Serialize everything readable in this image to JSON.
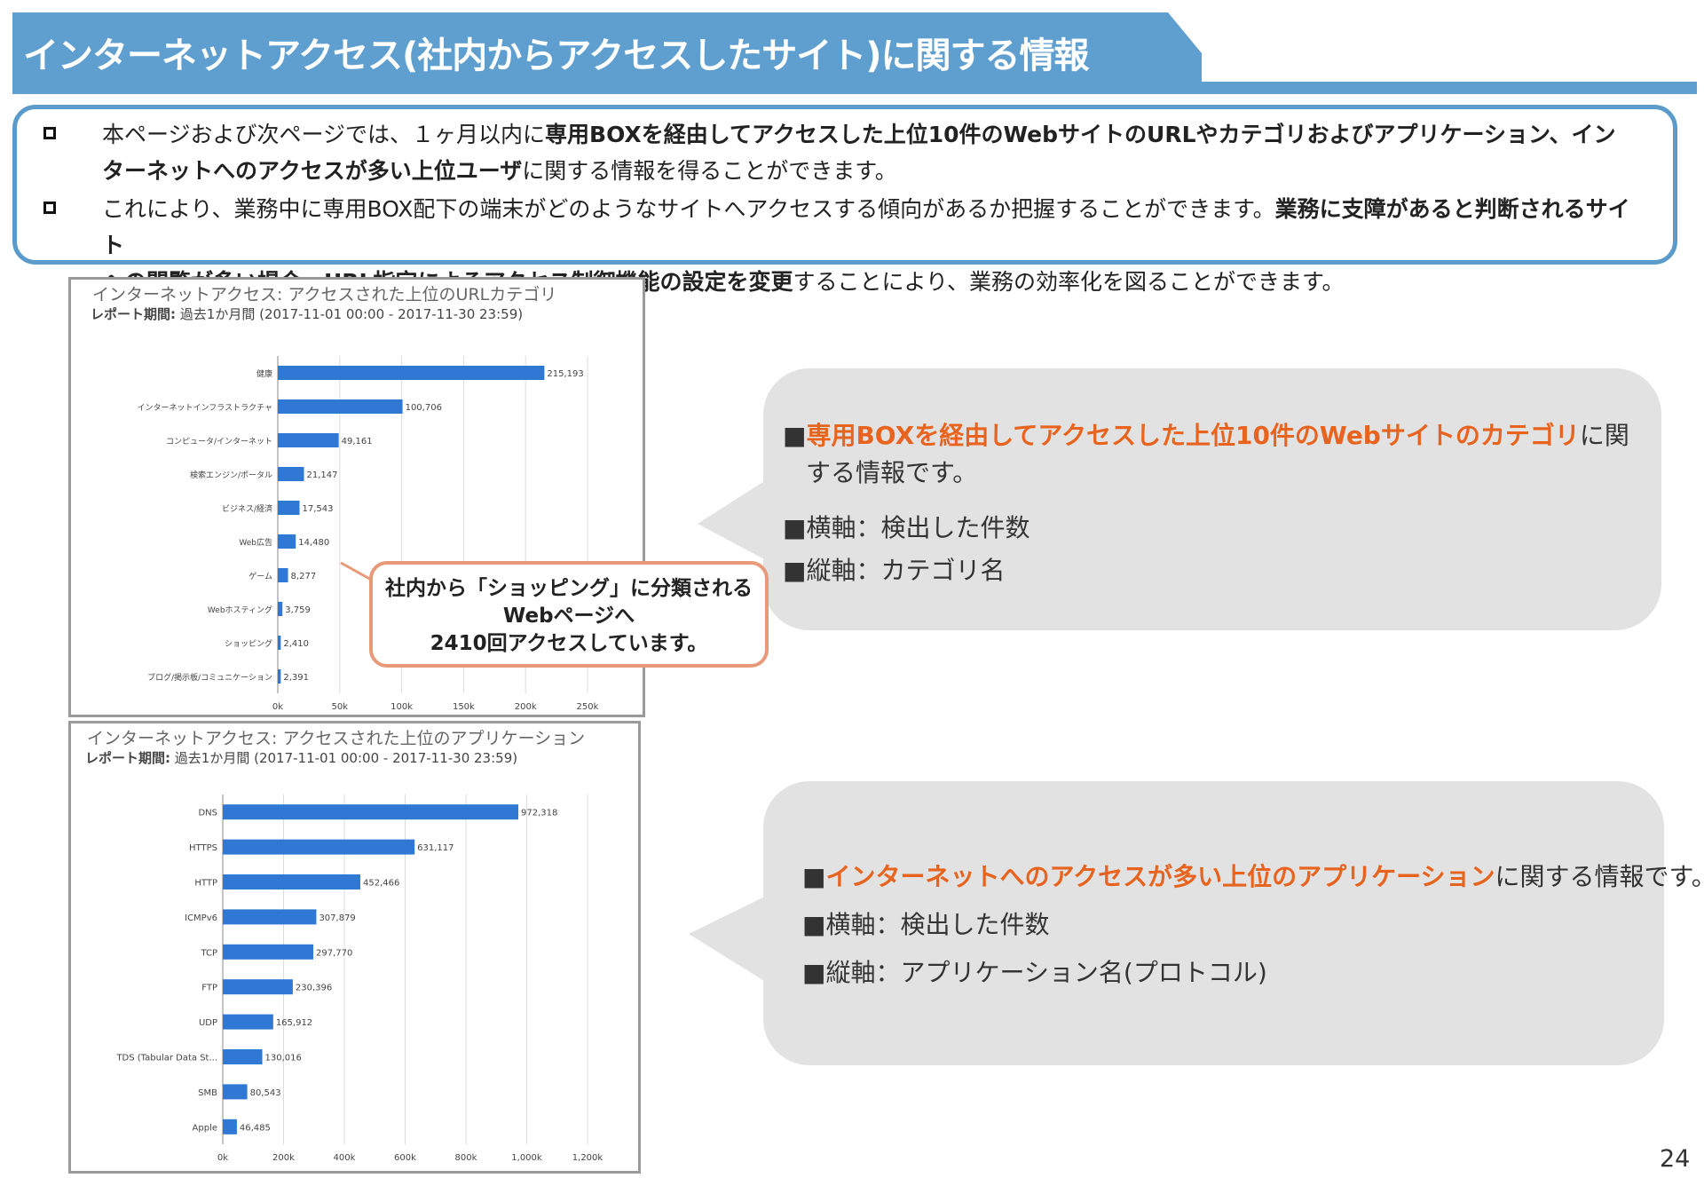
{
  "title": "インターネットアクセス(社内からアクセスしたサイト)に関する情報",
  "intro": {
    "b1_l1_a": "本ページおよび次ページでは、１ヶ月以内に",
    "b1_l1_b": "専用BOXを経由してアクセスした上位10件のWebサイトのURLやカテゴリおよびアプリケーション、イン",
    "b1_l2_a": "ターネットへのアクセスが多い上位ユーザ",
    "b1_l2_b": "に関する情報を得ることができます。",
    "b2_l1_a": "これにより、業務中に専用BOX配下の端末がどのようなサイトへアクセスする傾向があるか把握することができます。",
    "b2_l1_b": "業務に支障があると判断されるサイト",
    "b2_l2_a": "への閲覧が多い場合、URL指定によるアクセス制御機能の設定を変更",
    "b2_l2_b": "することにより、業務の効率化を図ることができます。"
  },
  "chart_data": [
    {
      "type": "bar",
      "orientation": "horizontal",
      "title": "インターネットアクセス: アクセスされた上位のURLカテゴリ",
      "period_label": "レポート期間:",
      "period_value": "過去1か月間 (2017-11-01 00:00 - 2017-11-30 23:59)",
      "categories": [
        "健康",
        "インターネットインフラストラクチャ",
        "コンピュータ/インターネット",
        "検索エンジン/ポータル",
        "ビジネス/経済",
        "Web広告",
        "ゲーム",
        "Webホスティング",
        "ショッピング",
        "ブログ/掲示板/コミュニケーション"
      ],
      "values": [
        215193,
        100706,
        49161,
        21147,
        17543,
        14480,
        8277,
        3759,
        2410,
        2391
      ],
      "value_labels": [
        "215,193",
        "100,706",
        "49,161",
        "21,147",
        "17,543",
        "14,480",
        "8,277",
        "3,759",
        "2,410",
        "2,391"
      ],
      "xlim": [
        0,
        250000
      ],
      "ticks": [
        0,
        50000,
        100000,
        150000,
        200000,
        250000
      ],
      "tick_labels": [
        "0k",
        "50k",
        "100k",
        "150k",
        "200k",
        "250k"
      ],
      "grid": true,
      "bar_color": "#2f78d4"
    },
    {
      "type": "bar",
      "orientation": "horizontal",
      "title": "インターネットアクセス: アクセスされた上位のアプリケーション",
      "period_label": "レポート期間:",
      "period_value": "過去1か月間 (2017-11-01 00:00 - 2017-11-30 23:59)",
      "categories": [
        "DNS",
        "HTTPS",
        "HTTP",
        "ICMPv6",
        "TCP",
        "FTP",
        "UDP",
        "TDS (Tabular Data St...",
        "SMB",
        "Apple"
      ],
      "values": [
        972318,
        631117,
        452466,
        307879,
        297770,
        230396,
        165912,
        130016,
        80543,
        46485
      ],
      "value_labels": [
        "972,318",
        "631,117",
        "452,466",
        "307,879",
        "297,770",
        "230,396",
        "165,912",
        "130,016",
        "80,543",
        "46,485"
      ],
      "xlim": [
        0,
        1200000
      ],
      "ticks": [
        0,
        200000,
        400000,
        600000,
        800000,
        1000000,
        1200000
      ],
      "tick_labels": [
        "0k",
        "200k",
        "400k",
        "600k",
        "800k",
        "1,000k",
        "1,200k"
      ],
      "grid": true,
      "bar_color": "#2f78d4"
    }
  ],
  "callout": {
    "l1": "社内から「ショッピング」に分類される",
    "l2": "Webページへ",
    "l3": "2410回アクセスしています。"
  },
  "bubble1": {
    "l1_mark": "■",
    "l1_orange": "専用BOXを経由してアクセスした上位10件のWebサイトのカテゴリ",
    "l1_rest": "に関",
    "l2": "する情報です。",
    "l3": "■横軸：検出した件数",
    "l4": "■縦軸：カテゴリ名"
  },
  "bubble2": {
    "l1_mark": "■",
    "l1_orange": "インターネットへのアクセスが多い上位のアプリケーション",
    "l1_rest": "に関する情報です。",
    "l2": "■横軸：検出した件数",
    "l3": "■縦軸：アプリケーション名(プロトコル)"
  },
  "page_number": "24",
  "colors": {
    "title_bar": "#5f9fd0",
    "box_border": "#5a9bcb",
    "accent_orange": "#e8641e",
    "bubble": "#e2e2e2",
    "bar": "#2f78d4"
  }
}
